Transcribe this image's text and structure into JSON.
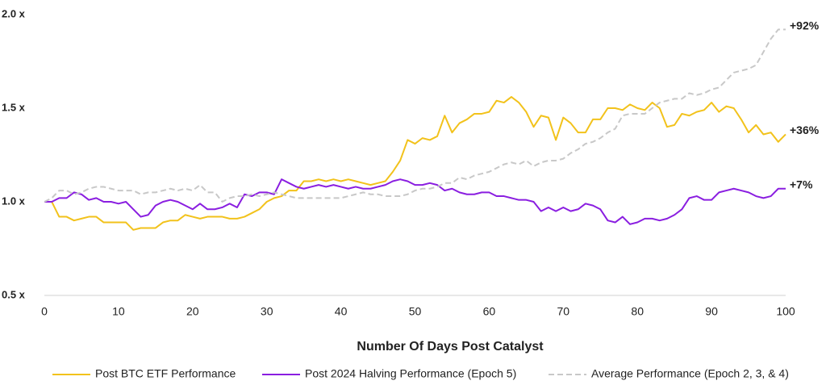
{
  "chart_data": {
    "type": "line",
    "x_label": "Number Of Days Post Catalyst",
    "x": [
      0,
      1,
      2,
      3,
      4,
      5,
      6,
      7,
      8,
      9,
      10,
      11,
      12,
      13,
      14,
      15,
      16,
      17,
      18,
      19,
      20,
      21,
      22,
      23,
      24,
      25,
      26,
      27,
      28,
      29,
      30,
      31,
      32,
      33,
      34,
      35,
      36,
      37,
      38,
      39,
      40,
      41,
      42,
      43,
      44,
      45,
      46,
      47,
      48,
      49,
      50,
      51,
      52,
      53,
      54,
      55,
      56,
      57,
      58,
      59,
      60,
      61,
      62,
      63,
      64,
      65,
      66,
      67,
      68,
      69,
      70,
      71,
      72,
      73,
      74,
      75,
      76,
      77,
      78,
      79,
      80,
      81,
      82,
      83,
      84,
      85,
      86,
      87,
      88,
      89,
      90,
      91,
      92,
      93,
      94,
      95,
      96,
      97,
      98,
      99,
      100
    ],
    "xlim": [
      0,
      100
    ],
    "xticks": [
      0,
      10,
      20,
      30,
      40,
      50,
      60,
      70,
      80,
      90,
      100
    ],
    "ylim": [
      0.5,
      2.0
    ],
    "yticks": [
      {
        "value": 0.5,
        "label": "0.5 x"
      },
      {
        "value": 1.0,
        "label": "1.0 x"
      },
      {
        "value": 1.5,
        "label": "1.5 x"
      },
      {
        "value": 2.0,
        "label": "2.0 x"
      }
    ],
    "grid": false,
    "legend": "bottom",
    "series": [
      {
        "name": "Post BTC ETF Performance",
        "color": "#f2c21b",
        "dash": false,
        "end_label": "+36%",
        "values": [
          1.0,
          1.0,
          0.92,
          0.92,
          0.9,
          0.91,
          0.92,
          0.92,
          0.89,
          0.89,
          0.89,
          0.89,
          0.85,
          0.86,
          0.86,
          0.86,
          0.89,
          0.9,
          0.9,
          0.93,
          0.92,
          0.91,
          0.92,
          0.92,
          0.92,
          0.91,
          0.91,
          0.92,
          0.94,
          0.96,
          1.0,
          1.02,
          1.03,
          1.06,
          1.06,
          1.11,
          1.11,
          1.12,
          1.11,
          1.12,
          1.11,
          1.12,
          1.11,
          1.1,
          1.09,
          1.1,
          1.11,
          1.16,
          1.22,
          1.33,
          1.31,
          1.34,
          1.33,
          1.35,
          1.46,
          1.37,
          1.42,
          1.44,
          1.47,
          1.47,
          1.48,
          1.54,
          1.53,
          1.56,
          1.53,
          1.48,
          1.4,
          1.46,
          1.45,
          1.33,
          1.45,
          1.42,
          1.37,
          1.37,
          1.44,
          1.44,
          1.5,
          1.5,
          1.49,
          1.52,
          1.5,
          1.49,
          1.53,
          1.5,
          1.4,
          1.41,
          1.47,
          1.46,
          1.48,
          1.49,
          1.53,
          1.48,
          1.51,
          1.5,
          1.44,
          1.37,
          1.41,
          1.36,
          1.37,
          1.32,
          1.36
        ]
      },
      {
        "name": "Post 2024 Halving Performance (Epoch 5)",
        "color": "#8a1ee0",
        "dash": false,
        "end_label": "+7%",
        "values": [
          1.0,
          1.0,
          1.02,
          1.02,
          1.05,
          1.04,
          1.01,
          1.02,
          1.0,
          1.0,
          0.99,
          1.0,
          0.96,
          0.92,
          0.93,
          0.98,
          1.0,
          1.01,
          1.0,
          0.98,
          0.96,
          0.99,
          0.96,
          0.96,
          0.97,
          0.99,
          0.97,
          1.04,
          1.03,
          1.05,
          1.05,
          1.04,
          1.12,
          1.1,
          1.08,
          1.07,
          1.08,
          1.09,
          1.08,
          1.09,
          1.08,
          1.07,
          1.08,
          1.07,
          1.07,
          1.08,
          1.09,
          1.11,
          1.12,
          1.11,
          1.09,
          1.09,
          1.1,
          1.09,
          1.06,
          1.07,
          1.05,
          1.04,
          1.04,
          1.05,
          1.05,
          1.03,
          1.03,
          1.02,
          1.01,
          1.01,
          1.0,
          0.95,
          0.97,
          0.95,
          0.97,
          0.95,
          0.96,
          0.99,
          0.98,
          0.96,
          0.9,
          0.89,
          0.92,
          0.88,
          0.89,
          0.91,
          0.91,
          0.9,
          0.91,
          0.93,
          0.96,
          1.02,
          1.03,
          1.01,
          1.01,
          1.05,
          1.06,
          1.07,
          1.06,
          1.05,
          1.03,
          1.02,
          1.03,
          1.07,
          1.07
        ]
      },
      {
        "name": "Average Performance (Epoch 2, 3, & 4)",
        "color": "#c8c8c8",
        "dash": true,
        "end_label": "+92%",
        "values": [
          1.0,
          1.02,
          1.06,
          1.06,
          1.04,
          1.05,
          1.07,
          1.08,
          1.08,
          1.07,
          1.06,
          1.06,
          1.06,
          1.04,
          1.05,
          1.05,
          1.06,
          1.07,
          1.06,
          1.07,
          1.06,
          1.09,
          1.05,
          1.05,
          1.0,
          1.02,
          1.03,
          1.03,
          1.04,
          1.03,
          1.04,
          1.05,
          1.04,
          1.03,
          1.02,
          1.02,
          1.02,
          1.02,
          1.02,
          1.02,
          1.02,
          1.03,
          1.04,
          1.05,
          1.04,
          1.04,
          1.03,
          1.03,
          1.03,
          1.04,
          1.06,
          1.07,
          1.07,
          1.08,
          1.1,
          1.1,
          1.13,
          1.12,
          1.14,
          1.15,
          1.16,
          1.18,
          1.2,
          1.21,
          1.2,
          1.22,
          1.19,
          1.21,
          1.22,
          1.22,
          1.23,
          1.26,
          1.28,
          1.31,
          1.32,
          1.34,
          1.37,
          1.39,
          1.46,
          1.47,
          1.47,
          1.47,
          1.5,
          1.53,
          1.54,
          1.55,
          1.55,
          1.58,
          1.57,
          1.58,
          1.6,
          1.61,
          1.65,
          1.69,
          1.7,
          1.71,
          1.73,
          1.8,
          1.87,
          1.92,
          1.92
        ]
      }
    ]
  }
}
